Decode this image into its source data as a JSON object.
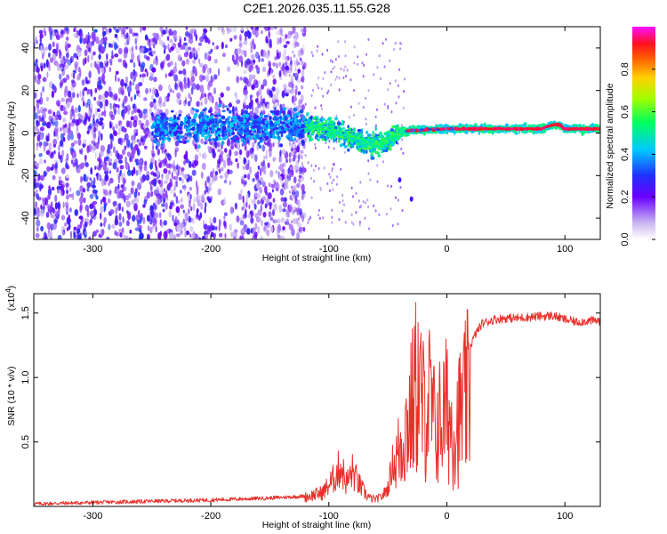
{
  "title": "C2E1.2026.035.11.55.G28",
  "chart_data": [
    {
      "type": "heatmap",
      "title": "C2E1.2026.035.11.55.G28",
      "xlabel": "Height of straight line (km)",
      "ylabel": "Frequency (Hz)",
      "xlim": [
        -350,
        130
      ],
      "ylim": [
        -50,
        50
      ],
      "xticks": [
        -300,
        -200,
        -100,
        0,
        100
      ],
      "xtick_labels": [
        "-300",
        "-200",
        "-100",
        "0",
        "100"
      ],
      "yticks": [
        -40,
        -20,
        0,
        20,
        40
      ],
      "ytick_labels": [
        "-40",
        "-20",
        "0",
        "20",
        "40"
      ],
      "colorbar": {
        "label": "Normalized spectral amplitude",
        "range": [
          0,
          1
        ],
        "ticks": [
          0.0,
          0.2,
          0.4,
          0.6,
          0.8
        ],
        "tick_labels": [
          "0.0",
          "0.2",
          "0.4",
          "0.6",
          "0.8"
        ],
        "colormap": "rainbow (white - purple - blue - cyan - green - yellow - red - magenta)"
      },
      "doppler_ridge": {
        "x": [
          -250,
          -200,
          -150,
          -120,
          -100,
          -80,
          -65,
          -55,
          -48,
          -42,
          -35,
          -20,
          0,
          40,
          80,
          90,
          95,
          100,
          130
        ],
        "y": [
          2,
          3,
          3,
          3,
          2,
          -2,
          -5,
          -5,
          -3,
          0,
          1,
          1.5,
          2,
          2,
          2,
          4,
          4,
          2,
          2
        ],
        "notes": "broad noisy purple scatter for x < -130 km; narrow red line for x > -30 km"
      }
    },
    {
      "type": "line",
      "xlabel": "Height of straight line (km)",
      "ylabel": "SNR (10 * v/v)",
      "y_multiplier": "(x10",
      "y_multiplier_exponent": "4",
      "y_multiplier_close": ")",
      "xlim": [
        -350,
        130
      ],
      "ylim": [
        0,
        16500
      ],
      "xticks": [
        -300,
        -200,
        -100,
        0,
        100
      ],
      "xtick_labels": [
        "-300",
        "-200",
        "-100",
        "0",
        "100"
      ],
      "yticks": [
        5000,
        10000,
        15000
      ],
      "ytick_labels": [
        "0.5",
        "1.0",
        "1.5"
      ],
      "series": [
        {
          "name": "SNR",
          "color": "#e8302a",
          "x": [
            -350,
            -300,
            -250,
            -200,
            -150,
            -120,
            -105,
            -95,
            -90,
            -85,
            -80,
            -75,
            -70,
            -65,
            -60,
            -55,
            -50,
            -45,
            -40,
            -35,
            -30,
            -25,
            -20,
            -15,
            -10,
            -5,
            0,
            5,
            10,
            15,
            20,
            25,
            30,
            40,
            50,
            60,
            70,
            80,
            90,
            100,
            110,
            120,
            130
          ],
          "y": [
            200,
            300,
            400,
            500,
            650,
            800,
            1200,
            2500,
            3500,
            2000,
            3000,
            2000,
            1200,
            700,
            600,
            800,
            1500,
            4000,
            6000,
            8000,
            10000,
            13000,
            10000,
            11000,
            8000,
            9000,
            10000,
            8000,
            9000,
            10500,
            12500,
            13500,
            14200,
            14500,
            14600,
            14600,
            14700,
            14750,
            14800,
            14500,
            14300,
            14400,
            14400
          ],
          "spike_range": [
            1000,
            5000
          ]
        }
      ]
    }
  ],
  "colors": {
    "line": "#e8302a",
    "axes": "#000000",
    "background": "#ffffff"
  }
}
